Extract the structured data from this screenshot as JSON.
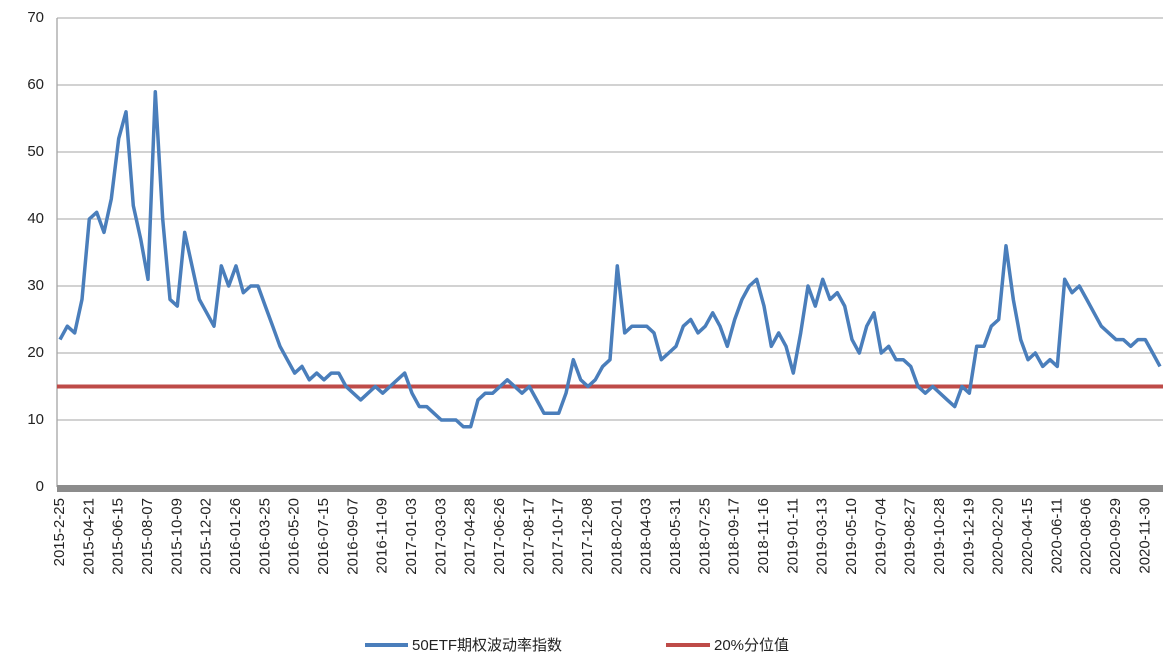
{
  "chart_data": {
    "type": "line",
    "categories": [
      "2015-2-25",
      null,
      null,
      null,
      "2015-04-21",
      null,
      null,
      null,
      "2015-06-15",
      null,
      null,
      null,
      "2015-08-07",
      null,
      null,
      null,
      "2015-10-09",
      null,
      null,
      null,
      "2015-12-02",
      null,
      null,
      null,
      "2016-01-26",
      null,
      null,
      null,
      "2016-03-25",
      null,
      null,
      null,
      "2016-05-20",
      null,
      null,
      null,
      "2016-07-15",
      null,
      null,
      null,
      "2016-09-07",
      null,
      null,
      null,
      "2016-11-09",
      null,
      null,
      null,
      "2017-01-03",
      null,
      null,
      null,
      "2017-03-03",
      null,
      null,
      null,
      "2017-04-28",
      null,
      null,
      null,
      "2017-06-26",
      null,
      null,
      null,
      "2017-08-17",
      null,
      null,
      null,
      "2017-10-17",
      null,
      null,
      null,
      "2017-12-08",
      null,
      null,
      null,
      "2018-02-01",
      null,
      null,
      null,
      "2018-04-03",
      null,
      null,
      null,
      "2018-05-31",
      null,
      null,
      null,
      "2018-07-25",
      null,
      null,
      null,
      "2018-09-17",
      null,
      null,
      null,
      "2018-11-16",
      null,
      null,
      null,
      "2019-01-11",
      null,
      null,
      null,
      "2019-03-13",
      null,
      null,
      null,
      "2019-05-10",
      null,
      null,
      null,
      "2019-07-04",
      null,
      null,
      null,
      "2019-08-27",
      null,
      null,
      null,
      "2019-10-28",
      null,
      null,
      null,
      "2019-12-19",
      null,
      null,
      null,
      "2020-02-20",
      null,
      null,
      null,
      "2020-04-15",
      null,
      null,
      null,
      "2020-06-11",
      null,
      null,
      null,
      "2020-08-06",
      null,
      null,
      null,
      "2020-09-29",
      null,
      null,
      null,
      "2020-11-30",
      null,
      null
    ],
    "series": [
      {
        "name": "50ETF期权波动率指数",
        "color": "#4a7ebb",
        "values": [
          22,
          24,
          23,
          28,
          40,
          41,
          38,
          43,
          52,
          56,
          42,
          37,
          31,
          59,
          40,
          28,
          27,
          38,
          33,
          28,
          26,
          24,
          33,
          30,
          33,
          29,
          30,
          30,
          27,
          24,
          21,
          19,
          17,
          18,
          16,
          17,
          16,
          17,
          17,
          15,
          14,
          13,
          14,
          15,
          14,
          15,
          16,
          17,
          14,
          12,
          12,
          11,
          10,
          10,
          10,
          9,
          9,
          13,
          14,
          14,
          15,
          16,
          15,
          14,
          15,
          13,
          11,
          11,
          11,
          14,
          19,
          16,
          15,
          16,
          18,
          19,
          33,
          23,
          24,
          24,
          24,
          23,
          19,
          20,
          21,
          24,
          25,
          23,
          24,
          26,
          24,
          21,
          25,
          28,
          30,
          31,
          27,
          21,
          23,
          21,
          17,
          23,
          30,
          27,
          31,
          28,
          29,
          27,
          22,
          20,
          24,
          26,
          20,
          21,
          19,
          19,
          18,
          15,
          14,
          15,
          14,
          13,
          12,
          15,
          14,
          21,
          21,
          24,
          25,
          36,
          28,
          22,
          19,
          20,
          18,
          19,
          18,
          31,
          29,
          30,
          28,
          26,
          24,
          23,
          22,
          22,
          21,
          22,
          22,
          20,
          18
        ]
      }
    ],
    "reference_line": {
      "name": "20%分位值",
      "value": 15,
      "color": "#be4b48"
    },
    "ylim": [
      0,
      70
    ],
    "yticks": [
      0,
      10,
      20,
      30,
      40,
      50,
      60,
      70
    ],
    "grid": true
  }
}
